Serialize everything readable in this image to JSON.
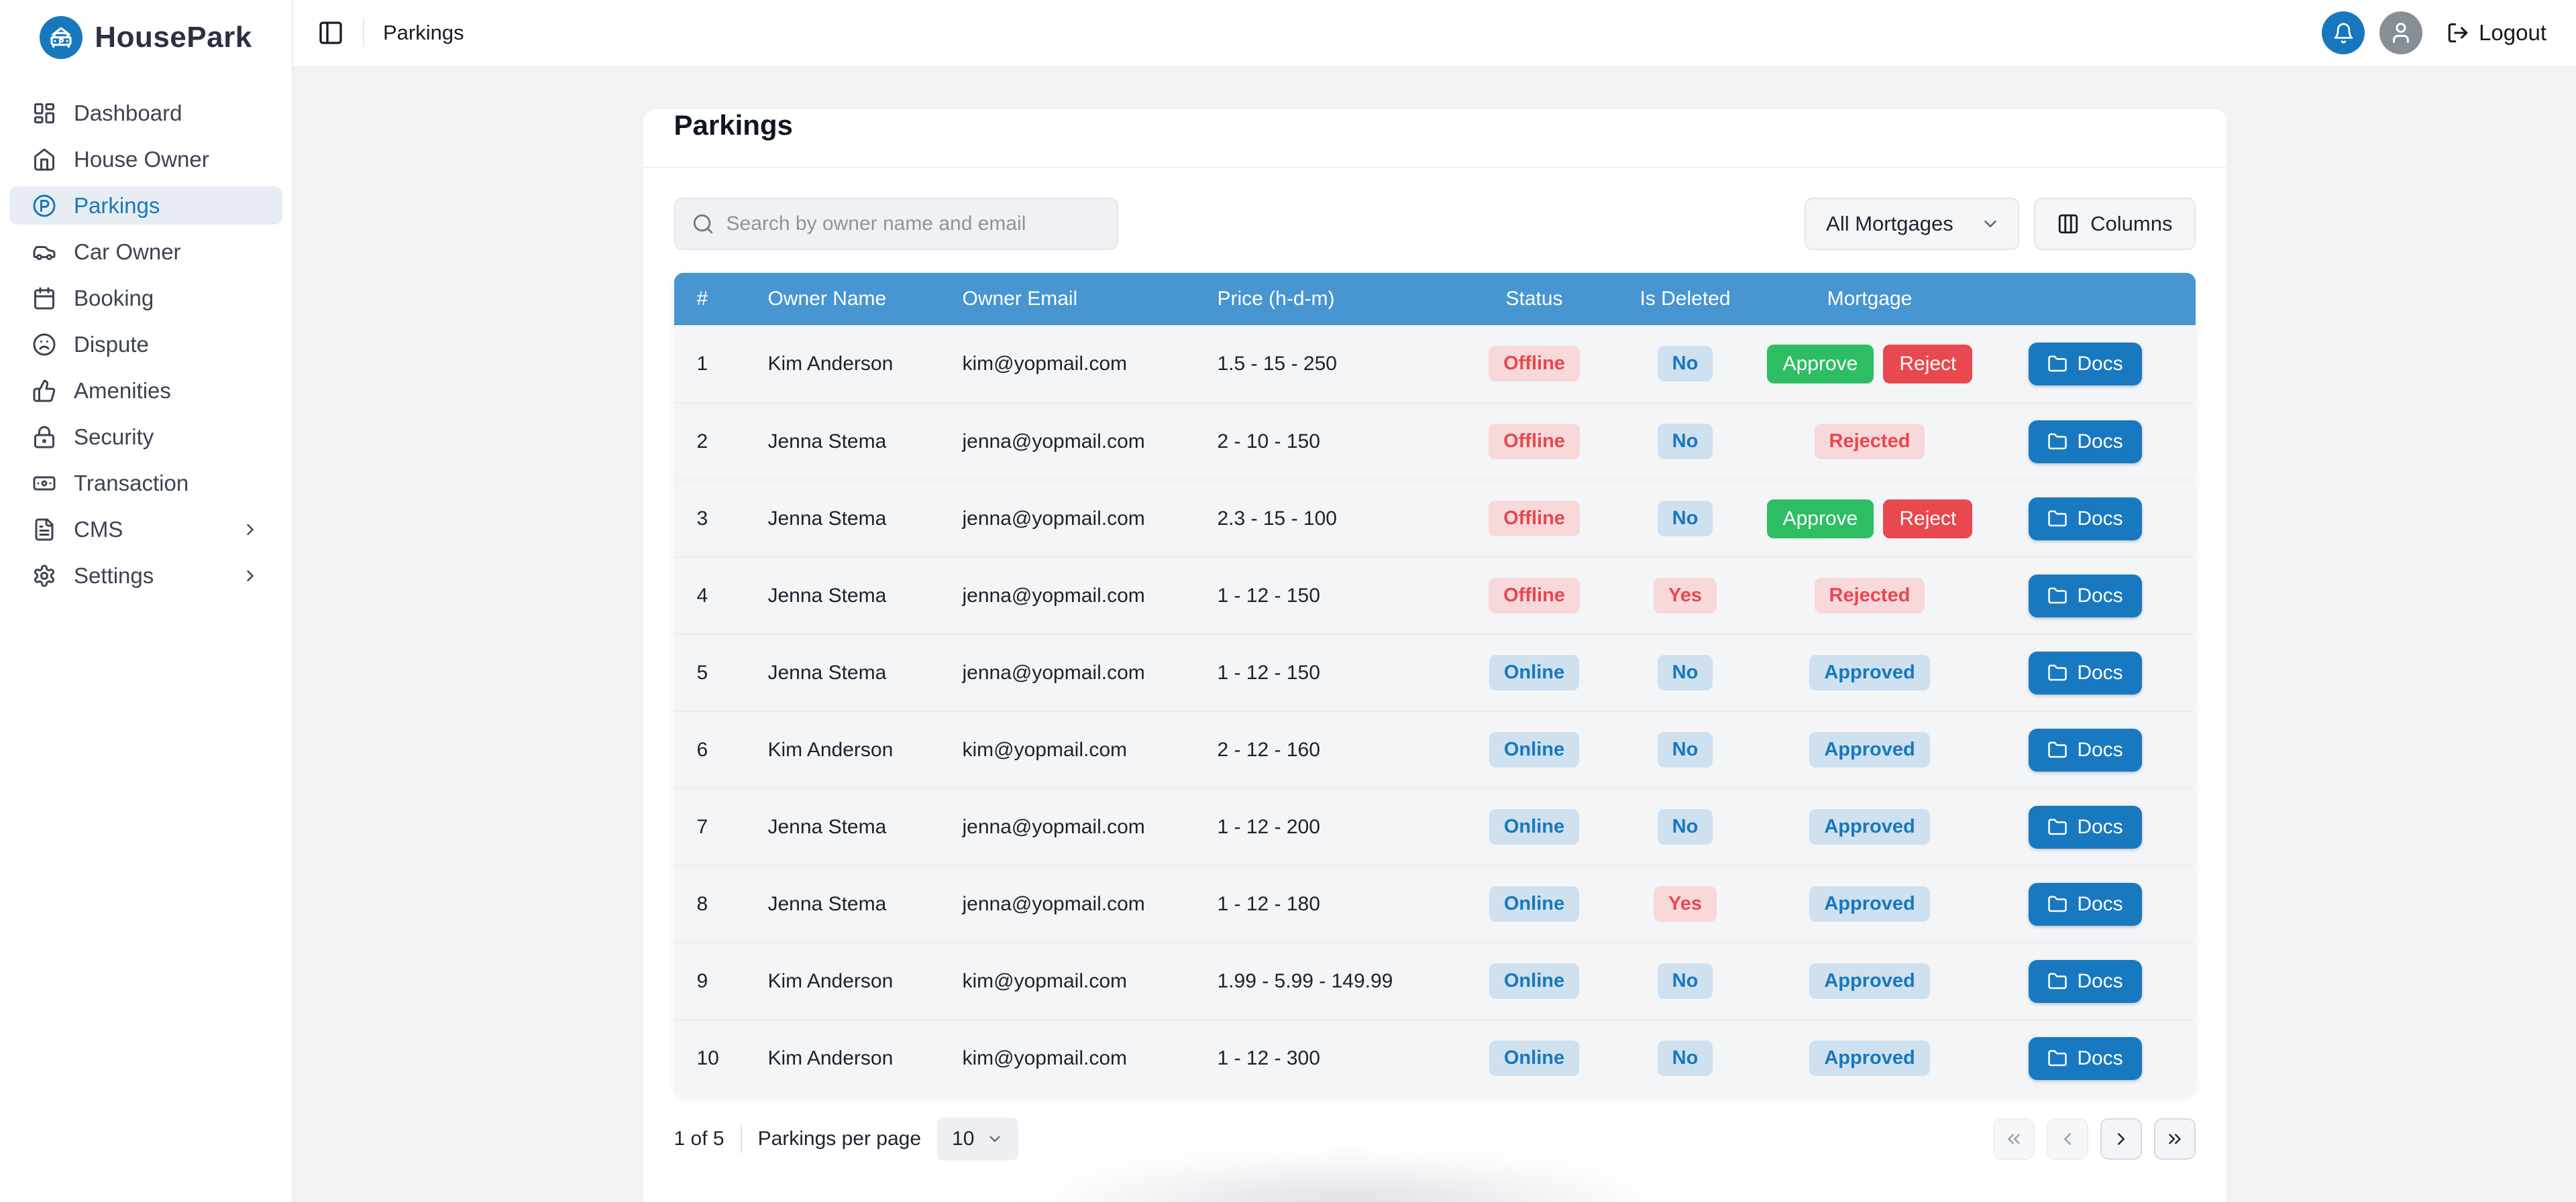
{
  "brand": {
    "name": "HousePark"
  },
  "sidebar": {
    "items": [
      {
        "label": "Dashboard",
        "icon": "dashboard",
        "active": false,
        "has_submenu": false
      },
      {
        "label": "House Owner",
        "icon": "house",
        "active": false,
        "has_submenu": false
      },
      {
        "label": "Parkings",
        "icon": "parking",
        "active": true,
        "has_submenu": false
      },
      {
        "label": "Car Owner",
        "icon": "car",
        "active": false,
        "has_submenu": false
      },
      {
        "label": "Booking",
        "icon": "calendar",
        "active": false,
        "has_submenu": false
      },
      {
        "label": "Dispute",
        "icon": "frown",
        "active": false,
        "has_submenu": false
      },
      {
        "label": "Amenities",
        "icon": "thumbs-up",
        "active": false,
        "has_submenu": false
      },
      {
        "label": "Security",
        "icon": "lock",
        "active": false,
        "has_submenu": false
      },
      {
        "label": "Transaction",
        "icon": "banknote",
        "active": false,
        "has_submenu": false
      },
      {
        "label": "CMS",
        "icon": "file-text",
        "active": false,
        "has_submenu": true
      },
      {
        "label": "Settings",
        "icon": "gear",
        "active": false,
        "has_submenu": true
      }
    ]
  },
  "header": {
    "breadcrumb": "Parkings",
    "logout_label": "Logout"
  },
  "page": {
    "title": "Parkings"
  },
  "toolbar": {
    "search_placeholder": "Search by owner name and email",
    "mortgage_filter": "All Mortgages",
    "columns_label": "Columns"
  },
  "table": {
    "columns": [
      "#",
      "Owner Name",
      "Owner Email",
      "Price (h-d-m)",
      "Status",
      "Is Deleted",
      "Mortgage",
      ""
    ],
    "mortgage_actions": {
      "approve": "Approve",
      "reject": "Reject"
    },
    "docs_label": "Docs",
    "rows": [
      {
        "num": "1",
        "owner_name": "Kim Anderson",
        "owner_email": "kim@yopmail.com",
        "price": "1.5 - 15 - 250",
        "status": "Offline",
        "status_style": "red",
        "is_deleted": "No",
        "deleted_style": "blue",
        "mortgage_type": "actions",
        "mortgage_label": "",
        "mortgage_style": ""
      },
      {
        "num": "2",
        "owner_name": "Jenna Stema",
        "owner_email": "jenna@yopmail.com",
        "price": "2 - 10 - 150",
        "status": "Offline",
        "status_style": "red",
        "is_deleted": "No",
        "deleted_style": "blue",
        "mortgage_type": "badge",
        "mortgage_label": "Rejected",
        "mortgage_style": "red"
      },
      {
        "num": "3",
        "owner_name": "Jenna Stema",
        "owner_email": "jenna@yopmail.com",
        "price": "2.3 - 15 - 100",
        "status": "Offline",
        "status_style": "red",
        "is_deleted": "No",
        "deleted_style": "blue",
        "mortgage_type": "actions",
        "mortgage_label": "",
        "mortgage_style": ""
      },
      {
        "num": "4",
        "owner_name": "Jenna Stema",
        "owner_email": "jenna@yopmail.com",
        "price": "1 - 12 - 150",
        "status": "Offline",
        "status_style": "red",
        "is_deleted": "Yes",
        "deleted_style": "red",
        "mortgage_type": "badge",
        "mortgage_label": "Rejected",
        "mortgage_style": "red"
      },
      {
        "num": "5",
        "owner_name": "Jenna Stema",
        "owner_email": "jenna@yopmail.com",
        "price": "1 - 12 - 150",
        "status": "Online",
        "status_style": "blue",
        "is_deleted": "No",
        "deleted_style": "blue",
        "mortgage_type": "badge",
        "mortgage_label": "Approved",
        "mortgage_style": "blue"
      },
      {
        "num": "6",
        "owner_name": "Kim Anderson",
        "owner_email": "kim@yopmail.com",
        "price": "2 - 12 - 160",
        "status": "Online",
        "status_style": "blue",
        "is_deleted": "No",
        "deleted_style": "blue",
        "mortgage_type": "badge",
        "mortgage_label": "Approved",
        "mortgage_style": "blue"
      },
      {
        "num": "7",
        "owner_name": "Jenna Stema",
        "owner_email": "jenna@yopmail.com",
        "price": "1 - 12 - 200",
        "status": "Online",
        "status_style": "blue",
        "is_deleted": "No",
        "deleted_style": "blue",
        "mortgage_type": "badge",
        "mortgage_label": "Approved",
        "mortgage_style": "blue"
      },
      {
        "num": "8",
        "owner_name": "Jenna Stema",
        "owner_email": "jenna@yopmail.com",
        "price": "1 - 12 - 180",
        "status": "Online",
        "status_style": "blue",
        "is_deleted": "Yes",
        "deleted_style": "red",
        "mortgage_type": "badge",
        "mortgage_label": "Approved",
        "mortgage_style": "blue"
      },
      {
        "num": "9",
        "owner_name": "Kim Anderson",
        "owner_email": "kim@yopmail.com",
        "price": "1.99 - 5.99 - 149.99",
        "status": "Online",
        "status_style": "blue",
        "is_deleted": "No",
        "deleted_style": "blue",
        "mortgage_type": "badge",
        "mortgage_label": "Approved",
        "mortgage_style": "blue"
      },
      {
        "num": "10",
        "owner_name": "Kim Anderson",
        "owner_email": "kim@yopmail.com",
        "price": "1 - 12 - 300",
        "status": "Online",
        "status_style": "blue",
        "is_deleted": "No",
        "deleted_style": "blue",
        "mortgage_type": "badge",
        "mortgage_label": "Approved",
        "mortgage_style": "blue"
      }
    ]
  },
  "pagination": {
    "page_info": "1 of 5",
    "per_page_label": "Parkings per page",
    "per_page_value": "10",
    "nav": [
      {
        "name": "first",
        "icon": "chevrons-left",
        "enabled": false
      },
      {
        "name": "prev",
        "icon": "chevron-left",
        "enabled": false
      },
      {
        "name": "next",
        "icon": "chevron-right",
        "enabled": true
      },
      {
        "name": "last",
        "icon": "chevrons-right",
        "enabled": true
      }
    ]
  },
  "colors": {
    "primary": "#1778be",
    "table_header": "#4795d1",
    "approve_green": "#2dbe64",
    "reject_red": "#e8484e",
    "pill_red_bg": "#f7d8db",
    "pill_red_text": "#e8484e",
    "pill_blue_bg": "#cfe0ef",
    "pill_blue_text": "#1778be"
  }
}
